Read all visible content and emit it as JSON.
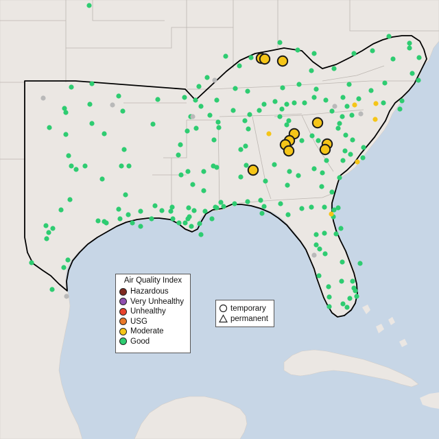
{
  "colors": {
    "water": "#c7d6e6",
    "land": "#ebe7e3",
    "border": "#bcb6b1",
    "highlight": "#000000",
    "Hazardous": "#7e2a20",
    "Very Unhealthy": "#8f4fb0",
    "Unhealthy": "#e8432e",
    "USG": "#e8782a",
    "Moderate": "#f5c518",
    "Good": "#2ecc71",
    "NoData": "#b9b9b9"
  },
  "legend": {
    "title": "Air Quality Index",
    "categories": [
      "Hazardous",
      "Very Unhealthy",
      "Unhealthy",
      "USG",
      "Moderate",
      "Good"
    ]
  },
  "type_legend": {
    "temporary": "temporary",
    "permanent": "permanent"
  },
  "large_moderate": [
    [
      381,
      85
    ],
    [
      386,
      86
    ],
    [
      412,
      89
    ],
    [
      463,
      179
    ],
    [
      429,
      195
    ],
    [
      422,
      205
    ],
    [
      416,
      211
    ],
    [
      421,
      220
    ],
    [
      477,
      210
    ],
    [
      474,
      218
    ],
    [
      369,
      248
    ]
  ],
  "small_moderate": [
    [
      392,
      195
    ],
    [
      517,
      153
    ],
    [
      548,
      151
    ],
    [
      547,
      174
    ],
    [
      521,
      236
    ],
    [
      483,
      312
    ]
  ],
  "small_gray": [
    [
      63,
      143
    ],
    [
      164,
      153
    ],
    [
      281,
      170
    ],
    [
      313,
      117
    ],
    [
      488,
      155
    ],
    [
      526,
      166
    ],
    [
      458,
      372
    ],
    [
      97,
      432
    ]
  ],
  "good": [
    [
      130,
      8
    ],
    [
      104,
      127
    ],
    [
      134,
      122
    ],
    [
      173,
      140
    ],
    [
      131,
      152
    ],
    [
      94,
      158
    ],
    [
      96,
      164
    ],
    [
      179,
      162
    ],
    [
      134,
      180
    ],
    [
      72,
      186
    ],
    [
      96,
      196
    ],
    [
      152,
      195
    ],
    [
      223,
      181
    ],
    [
      269,
      142
    ],
    [
      290,
      126
    ],
    [
      293,
      155
    ],
    [
      278,
      170
    ],
    [
      273,
      191
    ],
    [
      286,
      187
    ],
    [
      263,
      211
    ],
    [
      230,
      145
    ],
    [
      316,
      146
    ],
    [
      343,
      129
    ],
    [
      361,
      133
    ],
    [
      349,
      96
    ],
    [
      329,
      82
    ],
    [
      366,
      84
    ],
    [
      408,
      62
    ],
    [
      434,
      73
    ],
    [
      458,
      78
    ],
    [
      454,
      103
    ],
    [
      487,
      100
    ],
    [
      516,
      78
    ],
    [
      543,
      74
    ],
    [
      567,
      53
    ],
    [
      573,
      86
    ],
    [
      597,
      70
    ],
    [
      597,
      63
    ],
    [
      611,
      84
    ],
    [
      601,
      107
    ],
    [
      610,
      117
    ],
    [
      586,
      147
    ],
    [
      561,
      121
    ],
    [
      509,
      123
    ],
    [
      461,
      130
    ],
    [
      436,
      123
    ],
    [
      412,
      128
    ],
    [
      385,
      152
    ],
    [
      378,
      161
    ],
    [
      401,
      148
    ],
    [
      411,
      159
    ],
    [
      418,
      152
    ],
    [
      429,
      150
    ],
    [
      444,
      150
    ],
    [
      458,
      142
    ],
    [
      475,
      146
    ],
    [
      484,
      162
    ],
    [
      500,
      142
    ],
    [
      506,
      155
    ],
    [
      499,
      170
    ],
    [
      495,
      180
    ],
    [
      513,
      168
    ],
    [
      523,
      144
    ],
    [
      541,
      132
    ],
    [
      559,
      150
    ],
    [
      583,
      159
    ],
    [
      408,
      170
    ],
    [
      421,
      176
    ],
    [
      440,
      205
    ],
    [
      455,
      198
    ],
    [
      464,
      205
    ],
    [
      493,
      187
    ],
    [
      504,
      197
    ],
    [
      514,
      204
    ],
    [
      530,
      215
    ],
    [
      529,
      230
    ],
    [
      511,
      225
    ],
    [
      503,
      220
    ],
    [
      500,
      234
    ],
    [
      476,
      234
    ],
    [
      418,
      182
    ],
    [
      364,
      167
    ],
    [
      362,
      188
    ],
    [
      358,
      213
    ],
    [
      351,
      218
    ],
    [
      359,
      241
    ],
    [
      318,
      178
    ],
    [
      316,
      244
    ],
    [
      274,
      250
    ],
    [
      312,
      204
    ],
    [
      357,
      176
    ],
    [
      340,
      161
    ],
    [
      302,
      113
    ],
    [
      285,
      146
    ],
    [
      306,
      168
    ],
    [
      319,
      186
    ],
    [
      260,
      226
    ],
    [
      251,
      302
    ],
    [
      252,
      319
    ],
    [
      275,
      303
    ],
    [
      276,
      316
    ],
    [
      297,
      278
    ],
    [
      299,
      308
    ],
    [
      314,
      302
    ],
    [
      322,
      295
    ],
    [
      342,
      297
    ],
    [
      361,
      294
    ],
    [
      380,
      292
    ],
    [
      385,
      301
    ],
    [
      409,
      297
    ],
    [
      419,
      270
    ],
    [
      422,
      250
    ],
    [
      435,
      256
    ],
    [
      458,
      246
    ],
    [
      470,
      252
    ],
    [
      469,
      272
    ],
    [
      484,
      280
    ],
    [
      495,
      259
    ],
    [
      493,
      303
    ],
    [
      487,
      306
    ],
    [
      473,
      302
    ],
    [
      486,
      316
    ],
    [
      490,
      341
    ],
    [
      497,
      333
    ],
    [
      461,
      342
    ],
    [
      461,
      357
    ],
    [
      466,
      363
    ],
    [
      474,
      370
    ],
    [
      498,
      410
    ],
    [
      514,
      410
    ],
    [
      516,
      420
    ],
    [
      518,
      424
    ],
    [
      520,
      432
    ],
    [
      510,
      435
    ],
    [
      506,
      448
    ],
    [
      500,
      443
    ],
    [
      480,
      447
    ],
    [
      480,
      433
    ],
    [
      479,
      418
    ],
    [
      465,
      402
    ],
    [
      499,
      382
    ],
    [
      525,
      384
    ],
    [
      382,
      311
    ],
    [
      420,
      313
    ],
    [
      473,
      340
    ],
    [
      440,
      304
    ],
    [
      454,
      302
    ],
    [
      400,
      240
    ],
    [
      387,
      264
    ],
    [
      351,
      258
    ],
    [
      181,
      218
    ],
    [
      177,
      242
    ],
    [
      188,
      242
    ],
    [
      100,
      227
    ],
    [
      104,
      242
    ],
    [
      111,
      247
    ],
    [
      124,
      242
    ],
    [
      149,
      261
    ],
    [
      102,
      291
    ],
    [
      89,
      306
    ],
    [
      152,
      323
    ],
    [
      143,
      322
    ],
    [
      155,
      325
    ],
    [
      175,
      319
    ],
    [
      187,
      313
    ],
    [
      205,
      308
    ],
    [
      183,
      284
    ],
    [
      77,
      333
    ],
    [
      67,
      329
    ],
    [
      71,
      339
    ],
    [
      68,
      348
    ],
    [
      93,
      390
    ],
    [
      99,
      379
    ],
    [
      46,
      383
    ],
    [
      76,
      422
    ],
    [
      226,
      300
    ],
    [
      270,
      325
    ],
    [
      279,
      330
    ],
    [
      283,
      307
    ],
    [
      291,
      326
    ],
    [
      293,
      342
    ],
    [
      309,
      319
    ],
    [
      316,
      303
    ],
    [
      326,
      301
    ],
    [
      274,
      319
    ],
    [
      249,
      308
    ],
    [
      261,
      325
    ],
    [
      236,
      307
    ],
    [
      221,
      319
    ],
    [
      205,
      330
    ],
    [
      173,
      305
    ],
    [
      193,
      325
    ],
    [
      264,
      255
    ],
    [
      281,
      269
    ],
    [
      297,
      250
    ],
    [
      311,
      242
    ]
  ]
}
